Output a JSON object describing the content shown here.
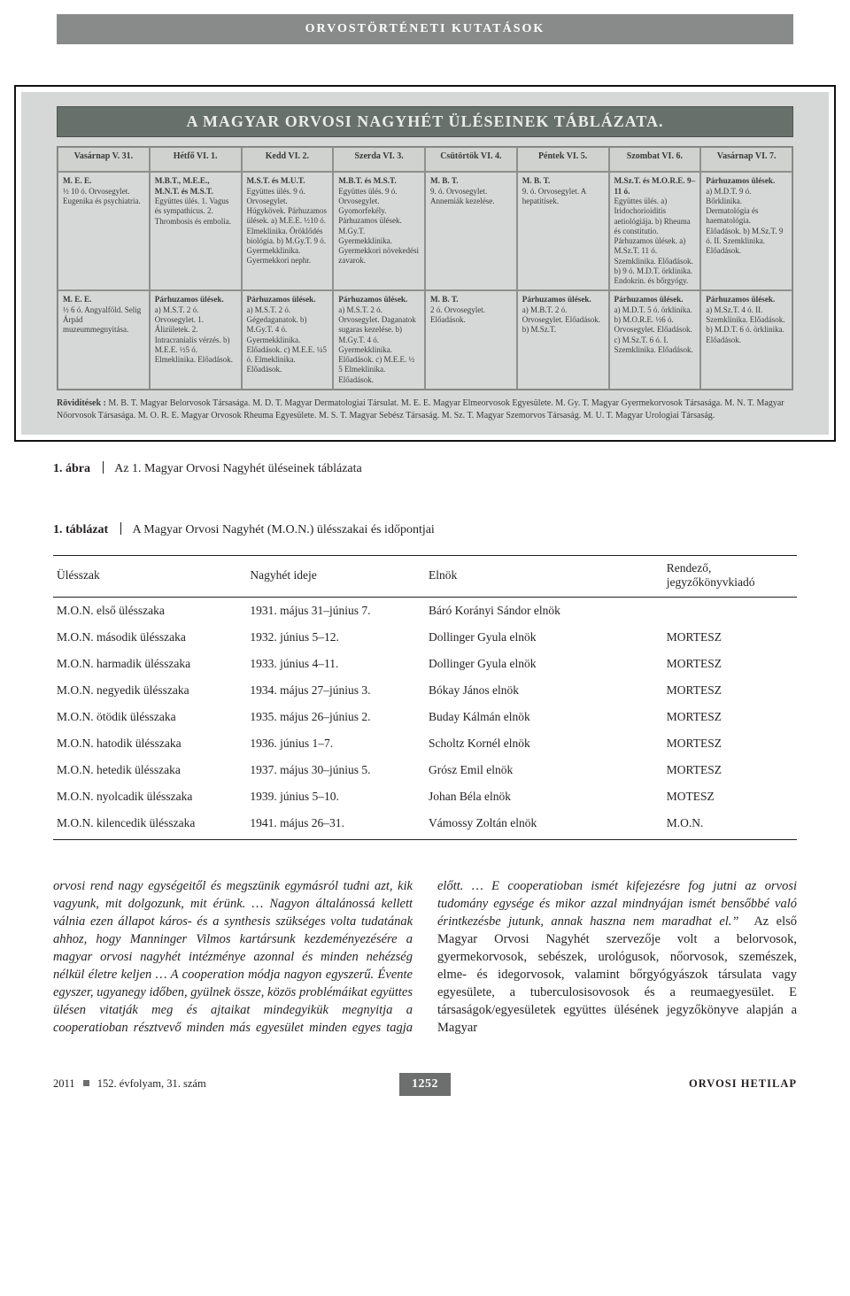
{
  "header_band": "ORVOSTÖRTÉNETI KUTATÁSOK",
  "scan": {
    "title": "A MAGYAR ORVOSI NAGYHÉT ÜLÉSEINEK TÁBLÁZATA.",
    "days": [
      "Vasárnap V. 31.",
      "Hétfő VI. 1.",
      "Kedd VI. 2.",
      "Szerda VI. 3.",
      "Csütörtök VI. 4.",
      "Péntek VI. 5.",
      "Szombat VI. 6.",
      "Vasárnap VI. 7."
    ],
    "row1": [
      "M. E. E.\n½ 10 ó.\nOrvosegylet.\nEugenika és psychiatria.",
      "M.B.T., M.E.E., M.N.T. és M.S.T.\nEgyüttes ülés.\n1. Vagus és sympathicus.\n2. Thrombosis és embolia.",
      "M.S.T. és M.U.T.\nEgyüttes ülés.\n9 ó. Orvosegylet. Húgykövek.\nPárhuzamos ülések.\na) M.E.E. ½10 ó. Elmeklinika. Öröklődés biológia.\nb) M.Gy.T. 9 ó. Gyermekklinika. Gyermekkori nephr.",
      "M.B.T. és M.S.T.\nEgyüttes ülés.\n9 ó. Orvosegylet. Gyomorfekély.\nPárhuzamos ülések.\nM.Gy.T. Gyermekklinika. Gyermekkori növekedési zavarok.",
      "M. B. T.\n9. ó.\nOrvosegylet.\nAnnemiák kezelése.",
      "M. B. T.\n9. ó.\nOrvosegylet.\nA hepatitisek.",
      "M.Sz.T. és M.O.R.E. 9–11 ó.\nEgyüttes ülés.\na) Iridochorioiditis aetiológiája.\nb) Rheuma és constitutio.\nPárhuzamos ülések.\na) M.Sz.T. 11 ó. Szemklinika. Előadások.\nb) 9 ó. M.D.T. örklinika. Endokrin. és bőrgyógy.",
      "Párhuzamos ülések.\na) M.D.T. 9 ó. Bőrklinika. Dermatológia és haematológia. Előadások.\nb) M.Sz.T. 9 ó. II. Szemklinika. Előadások."
    ],
    "row2": [
      "M. E. E.\n½ 6 ó.\nAngyalföld.\nSelig Árpád muzeummegnyitása.",
      "Párhuzamos ülések.\na) M.S.T. 2 ó. Orvosegylet.\n1. Álizületek.\n2. Intracranialis vérzés.\nb) M.E.E. ½5 ó. Elmeklinika. Előadások.",
      "Párhuzamos ülések.\na) M.S.T. 2 ó. Gégedaganatok.\nb) M.Gy.T. 4 ó. Gyermekklinika. Előadások.\nc) M.E.E. ¼5 ó. Elmeklinika. Előadások.",
      "Párhuzamos ülések.\na) M.S.T. 2 ó. Orvosegylet. Daganatok sugaras kezelése.\nb) M.Gy.T. 4 ó. Gyermekklinika. Előadások.\nc) M.E.E. ½ 5 Elmeklinika. Előadások.",
      "M. B. T.\n2 ó.\nOrvosegylet.\nElőadások.",
      "Párhuzamos ülések.\na) M.B.T. 2 ó. Orvosegylet. Előadások.\nb) M.Sz.T.",
      "Párhuzamos ülések.\na) M.D.T. 5 ó. örklinika.\nb) M.O.R.E. ½6 ó. Orvosegylet. Előadások.\nc) M.Sz.T. 6 ó. I. Szemklinika. Előadások.",
      "Párhuzamos ülések.\na) M.Sz.T. 4 ó. II. Szemklinika. Előadások.\nb) M.D.T. 6 ó. örklinika. Előadások."
    ],
    "abbr_label": "Rövidítések :",
    "abbr_text": "M. B. T. Magyar Belorvosok Társasága. M. D. T. Magyar Dermatologiai Társulat. M. E. E. Magyar Elmeorvosok Egyesülete. M. Gy. T. Magyar Gyermekorvosok Társasága. M. N. T. Magyar Nőorvosok Társasága. M. O. R. E. Magyar Orvosok Rheuma Egyesülete. M. S. T. Magyar Sebész Társaság. M. Sz. T. Magyar Szemorvos Társaság. M. U. T. Magyar Urologiai Társaság."
  },
  "caption_fig_label": "1. ábra",
  "caption_fig_text": "Az 1. Magyar Orvosi Nagyhét üléseinek táblázata",
  "mon": {
    "caption_label": "1. táblázat",
    "caption_text": "A Magyar Orvosi Nagyhét (M.O.N.) ülésszakai és időpontjai",
    "columns": [
      "Ülésszak",
      "Nagyhét ideje",
      "Elnök",
      "Rendező, jegyzőkönyvkiadó"
    ],
    "rows": [
      [
        "M.O.N. első ülésszaka",
        "1931. május 31–június 7.",
        "Báró Korányi Sándor elnök",
        ""
      ],
      [
        "M.O.N. második ülésszaka",
        "1932. június 5–12.",
        "Dollinger Gyula elnök",
        "MORTESZ"
      ],
      [
        "M.O.N. harmadik ülésszaka",
        "1933. június 4–11.",
        "Dollinger Gyula elnök",
        "MORTESZ"
      ],
      [
        "M.O.N. negyedik ülésszaka",
        "1934. május 27–június 3.",
        "Bókay János elnök",
        "MORTESZ"
      ],
      [
        "M.O.N. ötödik ülésszaka",
        "1935. május 26–június 2.",
        "Buday Kálmán elnök",
        "MORTESZ"
      ],
      [
        "M.O.N. hatodik ülésszaka",
        "1936. június 1–7.",
        "Scholtz Kornél elnök",
        "MORTESZ"
      ],
      [
        "M.O.N. hetedik ülésszaka",
        "1937. május 30–június 5.",
        "Grósz Emil elnök",
        "MORTESZ"
      ],
      [
        "M.O.N. nyolcadik ülésszaka",
        "1939. június 5–10.",
        "Johan Béla elnök",
        "MOTESZ"
      ],
      [
        "M.O.N. kilencedik ülésszaka",
        "1941. május 26–31.",
        "Vámossy Zoltán elnök",
        "M.O.N."
      ]
    ]
  },
  "body_left": "orvosi rend nagy egységeitől és megszünik egymásról tudni azt, kik vagyunk, mit dolgozunk, mit érünk. … Nagyon általánossá kellett válnia ezen állapot káros- és a synthesis szükséges volta tudatának ahhoz, hogy Manninger Vilmos kartársunk kezdeményezésére a magyar orvosi nagyhét intézménye azonnal és minden nehézség nélkül életre keljen … A cooperation módja nagyon egyszerű. Évente egyszer, ugyanegy időben, gyülnek össze, közös problémáikat együttes ülésen vitatják meg és ajtaikat mindegyikük megnyitja a cooperatioban résztvevő minden más egyesület",
  "body_right_italic": "minden egyes tagja előtt. … E cooperatioban ismét kifejezésre fog jutni az orvosi tudomány egysége és mikor azzal mindnyájan ismét bensőbbé való érintkezésbe jutunk, annak haszna nem maradhat el.”",
  "body_right_roman": "Az első Magyar Orvosi Nagyhét szervezője volt a belorvosok, gyermekorvosok, sebészek, urológusok, nőorvosok, szemészek, elme- és idegorvosok, valamint bőrgyógyászok társulata vagy egyesülete, a tuberculosisovosok és a reumaegyesület. E társaságok/egyesületek együttes ülésének jegyzőkönyve alapján a Magyar",
  "footer": {
    "left_a": "2011",
    "left_b": "152. évfolyam, 31. szám",
    "page": "1252",
    "right": "ORVOSI HETILAP"
  }
}
